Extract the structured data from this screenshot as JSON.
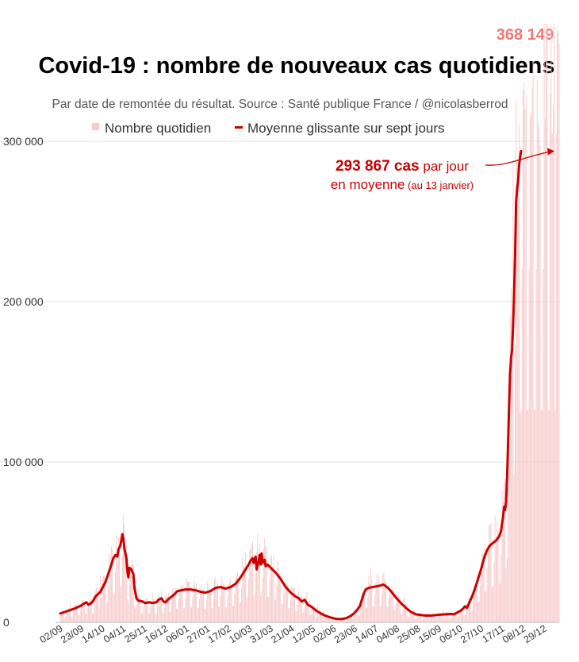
{
  "chart_data": {
    "type": "bar+line",
    "title": "Covid-19 : nombre de nouveaux cas quotidiens",
    "subtitle": "Par date de remontée du résultat. Source : Santé publique France / @nicolasberrod",
    "legend": {
      "bars": "Nombre quotidien",
      "line": "Moyenne glissante sur sept jours"
    },
    "colors": {
      "bars": "#f8c9c9",
      "line": "#cc0000",
      "peak": "#f07777",
      "grid": "#e3e3e3",
      "text": "#333333"
    },
    "ylim": [
      0,
      340000
    ],
    "yticks": [
      {
        "value": 0,
        "label": "0"
      },
      {
        "value": 100000,
        "label": "100 000"
      },
      {
        "value": 200000,
        "label": "200 000"
      },
      {
        "value": 300000,
        "label": "300 000"
      }
    ],
    "x_start": "2020-09-02",
    "x_end": "2022-01-13",
    "xticks": [
      "02/09",
      "23/09",
      "14/10",
      "04/11",
      "25/11",
      "16/12",
      "06/01",
      "27/01",
      "17/02",
      "10/03",
      "31/03",
      "21/04",
      "12/05",
      "02/06",
      "23/06",
      "14/07",
      "04/08",
      "25/08",
      "15/09",
      "06/10",
      "27/10",
      "17/11",
      "08/12",
      "29/12"
    ],
    "xtick_spacing_days": 21,
    "peak_label": "368 149",
    "peak_value": 368149,
    "annotation": {
      "value_bold": "293 867 cas",
      "rest1": " par jour",
      "line2": "en moyenne",
      "line2_small": " (au 13 janvier)",
      "value": 293867
    },
    "rolling_average_keypoints": [
      [
        0,
        5500
      ],
      [
        7,
        7000
      ],
      [
        14,
        8500
      ],
      [
        21,
        10500
      ],
      [
        23,
        11500
      ],
      [
        26,
        12500
      ],
      [
        28,
        11000
      ],
      [
        31,
        12000
      ],
      [
        33,
        13500
      ],
      [
        35,
        16000
      ],
      [
        40,
        19000
      ],
      [
        45,
        25000
      ],
      [
        50,
        34000
      ],
      [
        53,
        40000
      ],
      [
        55,
        42000
      ],
      [
        57,
        41000
      ],
      [
        58,
        45000
      ],
      [
        60,
        48000
      ],
      [
        62,
        55000
      ],
      [
        63,
        52000
      ],
      [
        64,
        46000
      ],
      [
        66,
        40000
      ],
      [
        67,
        32000
      ],
      [
        68,
        28000
      ],
      [
        69,
        34000
      ],
      [
        71,
        33000
      ],
      [
        73,
        30000
      ],
      [
        74,
        22000
      ],
      [
        76,
        15000
      ],
      [
        78,
        13500
      ],
      [
        82,
        13000
      ],
      [
        85,
        12000
      ],
      [
        89,
        12500
      ],
      [
        92,
        12000
      ],
      [
        96,
        12500
      ],
      [
        98,
        14000
      ],
      [
        101,
        15000
      ],
      [
        103,
        13000
      ],
      [
        105,
        12500
      ],
      [
        108,
        14500
      ],
      [
        111,
        16000
      ],
      [
        114,
        17500
      ],
      [
        117,
        19500
      ],
      [
        121,
        20000
      ],
      [
        125,
        20500
      ],
      [
        130,
        20500
      ],
      [
        135,
        20000
      ],
      [
        140,
        19000
      ],
      [
        145,
        18500
      ],
      [
        150,
        19500
      ],
      [
        155,
        21500
      ],
      [
        160,
        22000
      ],
      [
        165,
        21000
      ],
      [
        170,
        22000
      ],
      [
        175,
        24000
      ],
      [
        180,
        28000
      ],
      [
        185,
        33000
      ],
      [
        188,
        36000
      ],
      [
        190,
        38500
      ],
      [
        192,
        40000
      ],
      [
        193,
        37000
      ],
      [
        195,
        41000
      ],
      [
        196,
        33000
      ],
      [
        198,
        38000
      ],
      [
        199,
        42000
      ],
      [
        200,
        36000
      ],
      [
        201,
        43000
      ],
      [
        202,
        37000
      ],
      [
        204,
        39000
      ],
      [
        205,
        35000
      ],
      [
        207,
        36000
      ],
      [
        210,
        34000
      ],
      [
        215,
        31000
      ],
      [
        220,
        27000
      ],
      [
        225,
        22000
      ],
      [
        230,
        18500
      ],
      [
        235,
        16000
      ],
      [
        238,
        15000
      ],
      [
        241,
        13000
      ],
      [
        244,
        14000
      ],
      [
        247,
        11000
      ],
      [
        250,
        10000
      ],
      [
        255,
        7500
      ],
      [
        260,
        5500
      ],
      [
        265,
        4000
      ],
      [
        270,
        3000
      ],
      [
        275,
        2200
      ],
      [
        280,
        2000
      ],
      [
        285,
        2500
      ],
      [
        290,
        4000
      ],
      [
        293,
        5500
      ],
      [
        296,
        7500
      ],
      [
        299,
        10000
      ],
      [
        301,
        14000
      ],
      [
        303,
        18000
      ],
      [
        305,
        20500
      ],
      [
        308,
        21500
      ],
      [
        312,
        22000
      ],
      [
        316,
        22500
      ],
      [
        320,
        23000
      ],
      [
        322,
        23500
      ],
      [
        324,
        23000
      ],
      [
        327,
        21500
      ],
      [
        330,
        19500
      ],
      [
        335,
        15500
      ],
      [
        340,
        12000
      ],
      [
        345,
        9000
      ],
      [
        350,
        6500
      ],
      [
        355,
        5000
      ],
      [
        360,
        4500
      ],
      [
        365,
        4200
      ],
      [
        370,
        4200
      ],
      [
        375,
        4500
      ],
      [
        380,
        4800
      ],
      [
        385,
        5000
      ],
      [
        390,
        5200
      ],
      [
        393,
        5000
      ],
      [
        396,
        6000
      ],
      [
        399,
        7000
      ],
      [
        402,
        8500
      ],
      [
        404,
        10000
      ],
      [
        406,
        9000
      ],
      [
        408,
        12000
      ],
      [
        411,
        16000
      ],
      [
        414,
        21000
      ],
      [
        417,
        27000
      ],
      [
        420,
        33000
      ],
      [
        423,
        40000
      ],
      [
        426,
        45000
      ],
      [
        429,
        48000
      ],
      [
        432,
        49500
      ],
      [
        435,
        51000
      ],
      [
        438,
        53500
      ],
      [
        440,
        57000
      ],
      [
        442,
        66000
      ],
      [
        443,
        72000
      ],
      [
        444,
        70000
      ],
      [
        445,
        75000
      ],
      [
        446,
        90000
      ],
      [
        447,
        112000
      ],
      [
        448,
        135000
      ],
      [
        449,
        155000
      ],
      [
        450,
        165000
      ],
      [
        451,
        170000
      ],
      [
        452,
        185000
      ],
      [
        453,
        205000
      ],
      [
        454,
        230000
      ],
      [
        455,
        262000
      ],
      [
        456,
        270000
      ],
      [
        457,
        275000
      ],
      [
        458,
        285000
      ],
      [
        459,
        290000
      ],
      [
        460,
        293867
      ]
    ]
  }
}
